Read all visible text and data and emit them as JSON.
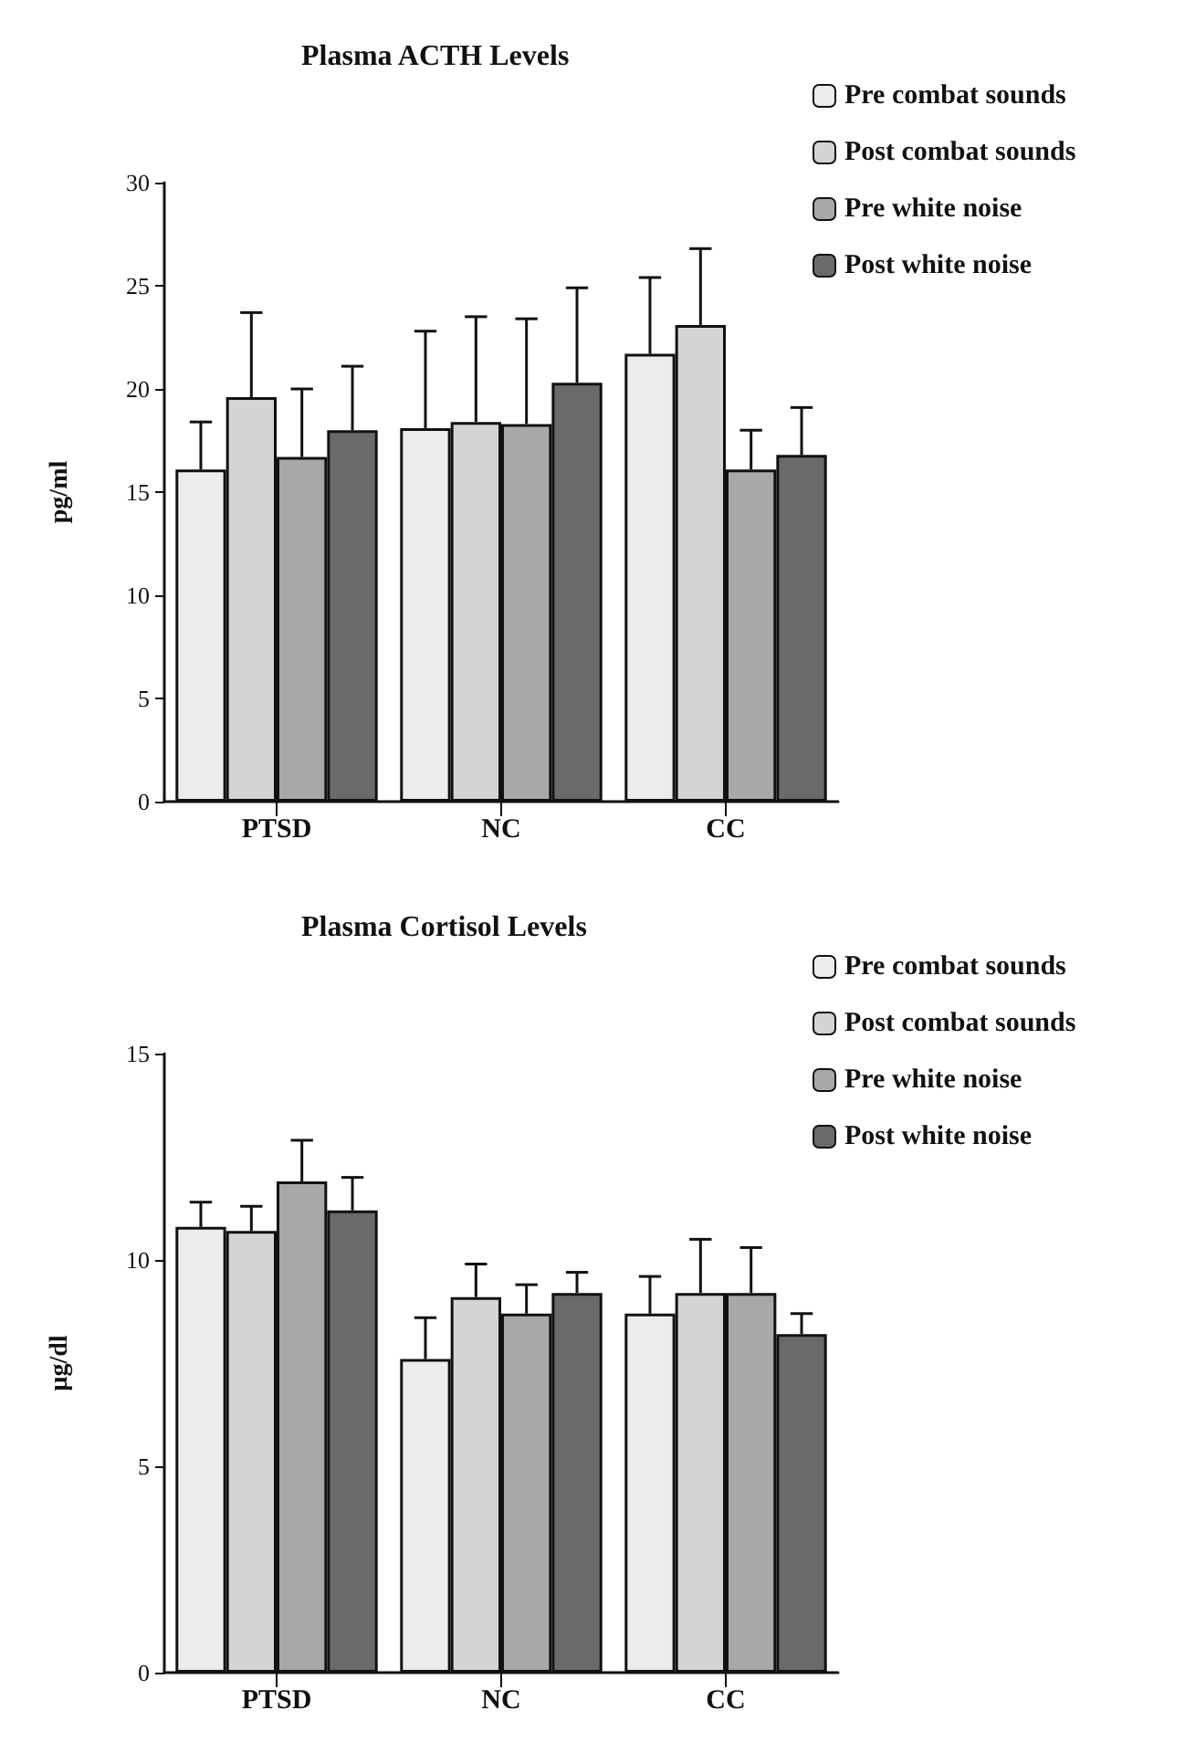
{
  "chart_data": [
    {
      "type": "bar",
      "title": "Plasma ACTH Levels",
      "ylabel": "pg/ml",
      "categories": [
        "PTSD",
        "NC",
        "CC"
      ],
      "ylim": [
        0,
        30
      ],
      "yticks": [
        0,
        5,
        10,
        15,
        20,
        25,
        30
      ],
      "grid": false,
      "legend": "top right",
      "series": [
        {
          "name": "Pre combat sounds",
          "color": "#ececec",
          "values": [
            16.1,
            18.1,
            21.7
          ],
          "errors": [
            [
              16.1,
              18.4
            ],
            [
              18.1,
              22.8
            ],
            [
              21.7,
              25.4
            ]
          ]
        },
        {
          "name": "Post combat sounds",
          "color": "#d4d4d4",
          "values": [
            19.6,
            18.4,
            23.1
          ],
          "errors": [
            [
              19.6,
              23.7
            ],
            [
              18.4,
              23.5
            ],
            [
              23.1,
              26.8
            ]
          ]
        },
        {
          "name": "Pre white noise",
          "color": "#a8a8a8",
          "values": [
            16.7,
            18.3,
            16.1
          ],
          "errors": [
            [
              16.7,
              20.0
            ],
            [
              18.3,
              23.4
            ],
            [
              16.1,
              18.0
            ]
          ]
        },
        {
          "name": "Post white noise",
          "color": "#6a6a6a",
          "values": [
            18.0,
            20.3,
            16.8
          ],
          "errors": [
            [
              18.0,
              21.1
            ],
            [
              20.3,
              24.9
            ],
            [
              16.8,
              19.1
            ]
          ]
        }
      ]
    },
    {
      "type": "bar",
      "title": "Plasma Cortisol Levels",
      "ylabel": "µg/dl",
      "categories": [
        "PTSD",
        "NC",
        "CC"
      ],
      "ylim": [
        0,
        15
      ],
      "yticks": [
        0,
        5,
        10,
        15
      ],
      "grid": false,
      "legend": "top right",
      "series": [
        {
          "name": "Pre combat sounds",
          "color": "#ececec",
          "values": [
            10.8,
            7.6,
            8.7
          ],
          "errors": [
            [
              10.8,
              11.4
            ],
            [
              7.6,
              8.6
            ],
            [
              8.7,
              9.6
            ]
          ]
        },
        {
          "name": "Post combat sounds",
          "color": "#d4d4d4",
          "values": [
            10.7,
            9.1,
            9.2
          ],
          "errors": [
            [
              10.7,
              11.3
            ],
            [
              9.1,
              9.9
            ],
            [
              9.2,
              10.5
            ]
          ]
        },
        {
          "name": "Pre white noise",
          "color": "#a8a8a8",
          "values": [
            11.9,
            8.7,
            9.2
          ],
          "errors": [
            [
              11.9,
              12.9
            ],
            [
              8.7,
              9.4
            ],
            [
              9.2,
              10.3
            ]
          ]
        },
        {
          "name": "Post white noise",
          "color": "#6a6a6a",
          "values": [
            11.2,
            9.2,
            8.2
          ],
          "errors": [
            [
              11.2,
              12.0
            ],
            [
              9.2,
              9.7
            ],
            [
              8.2,
              8.7
            ]
          ]
        }
      ]
    }
  ]
}
